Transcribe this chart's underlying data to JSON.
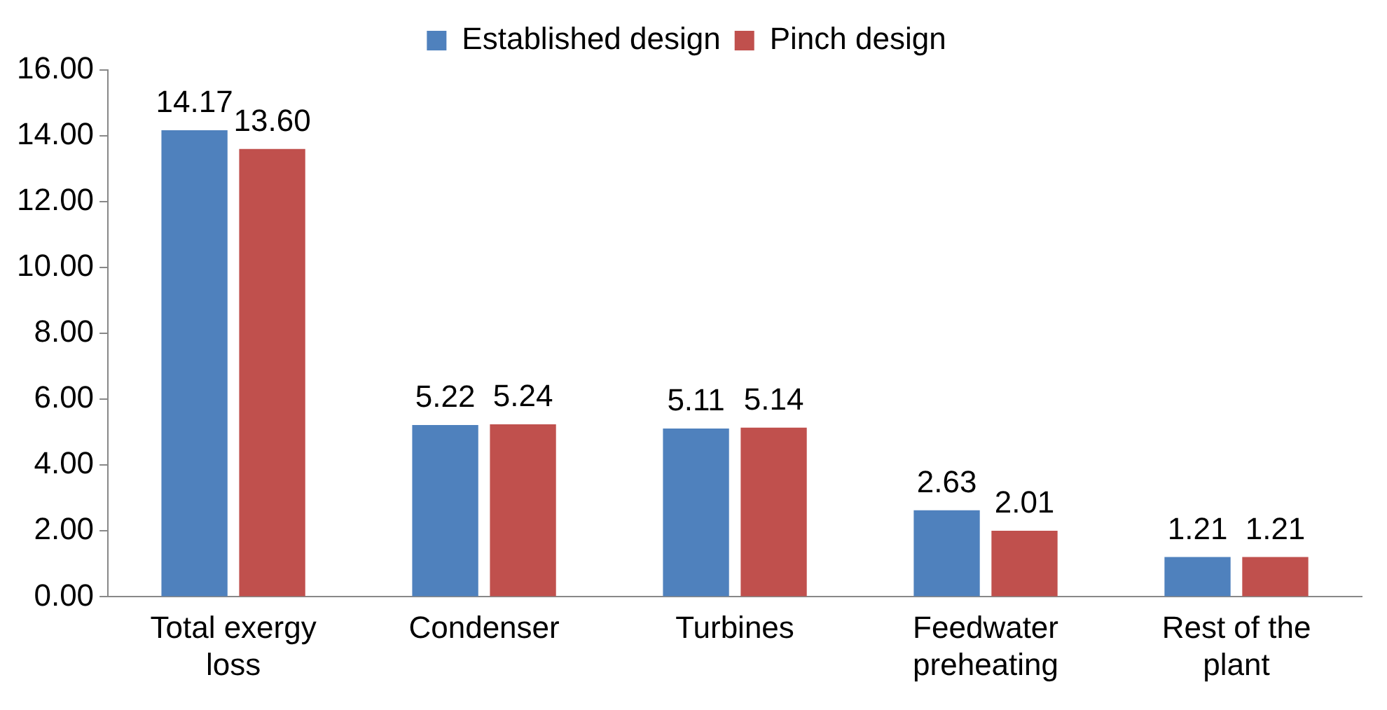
{
  "chart_data": {
    "type": "bar",
    "categories": [
      "Total exergy loss",
      "Condenser",
      "Turbines",
      "Feedwater preheating",
      "Rest of the plant"
    ],
    "series": [
      {
        "name": "Established design",
        "color": "#4f81bd",
        "values": [
          14.17,
          5.22,
          5.11,
          2.63,
          1.21
        ],
        "value_labels": [
          "14.17",
          "5.22",
          "5.11",
          "2.63",
          "1.21"
        ]
      },
      {
        "name": "Pinch design",
        "color": "#c0504d",
        "values": [
          13.6,
          5.24,
          5.14,
          2.01,
          1.21
        ],
        "value_labels": [
          "13.60",
          "5.24",
          "5.14",
          "2.01",
          "1.21"
        ]
      }
    ],
    "ylim": [
      0,
      16
    ],
    "yticks": [
      {
        "value": 0,
        "label": "0.00"
      },
      {
        "value": 2,
        "label": "2.00"
      },
      {
        "value": 4,
        "label": "4.00"
      },
      {
        "value": 6,
        "label": "6.00"
      },
      {
        "value": 8,
        "label": "8.00"
      },
      {
        "value": 10,
        "label": "10.00"
      },
      {
        "value": 12,
        "label": "12.00"
      },
      {
        "value": 14,
        "label": "14.00"
      },
      {
        "value": 16,
        "label": "16.00"
      }
    ],
    "grid": false,
    "legend": "top"
  }
}
